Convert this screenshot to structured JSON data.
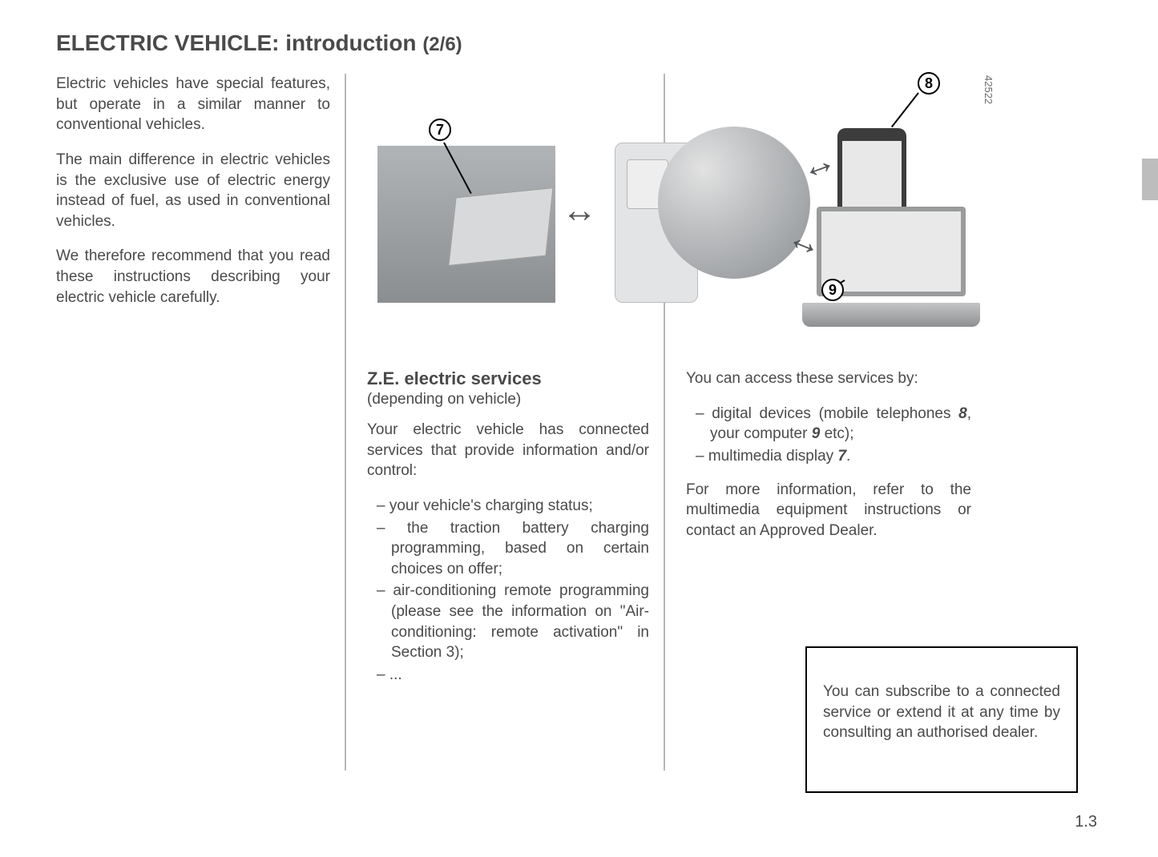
{
  "page": {
    "title_main": "ELECTRIC VEHICLE: introduction ",
    "title_part": "(2/6)",
    "page_number": "1.3"
  },
  "col1": {
    "p1": "Electric vehicles have special features, but operate in a similar manner to conventional vehicles.",
    "p2": "The main difference in electric vehicles is the exclusive use of electric energy instead of fuel, as used in conventional vehicles.",
    "p3": "We therefore recommend that you read these instructions describing your electric vehicle carefully."
  },
  "figure": {
    "id_code": "42522",
    "callouts": {
      "c7": "7",
      "c8": "8",
      "c9": "9"
    },
    "arrows_glyph": "↔"
  },
  "col2": {
    "heading": "Z.E. electric services",
    "caption": "(depending on vehicle)",
    "intro": "Your electric vehicle has connected services that provide information and/or control:",
    "items": [
      "your vehicle's charging status;",
      "the traction battery charging programming, based on certain choices on offer;",
      "air-conditioning remote programming (please see the information on \"Air-conditioning: remote activation\" in Section 3);",
      "..."
    ]
  },
  "col3": {
    "intro": "You can access these services by:",
    "item1_pre": "digital devices (mobile telephones ",
    "item1_ref1": "8",
    "item1_mid": ", your computer ",
    "item1_ref2": "9",
    "item1_post": " etc);",
    "item2_pre": "multimedia display ",
    "item2_ref": "7",
    "item2_post": ".",
    "outro": "For more information, refer to the multimedia equipment instructions or contact an Approved Dealer.",
    "note": "You can subscribe to a connected service or extend it at any time by consulting an authorised dealer."
  },
  "style": {
    "text_color": "#4a4a4a",
    "divider_color": "#b7b7b7",
    "tab_color": "#bdbdbd",
    "background": "#ffffff"
  }
}
